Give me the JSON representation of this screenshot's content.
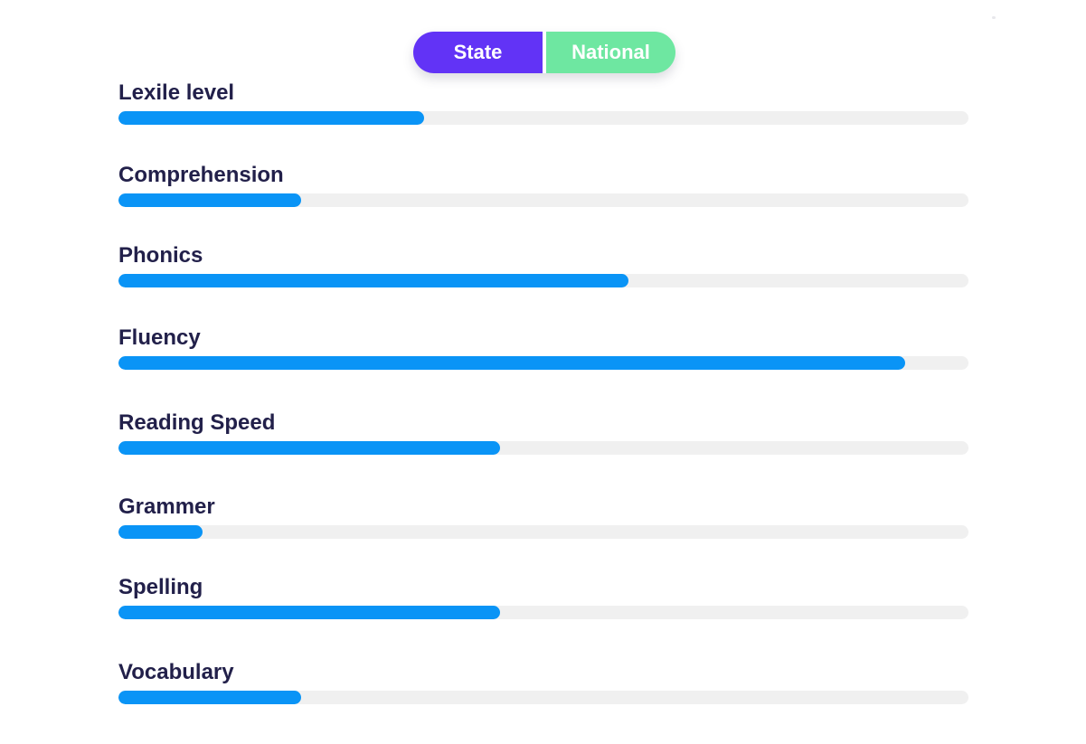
{
  "toggle": {
    "state_label": "State",
    "national_label": "National"
  },
  "colors": {
    "state": "#6233f6",
    "national": "#6ee7a1",
    "bar_fill": "#0a94f6",
    "track": "#f0f0f0",
    "label_text": "#22204a"
  },
  "metrics": [
    {
      "label": "Lexile level",
      "value": 0.36
    },
    {
      "label": "Comprehension",
      "value": 0.215
    },
    {
      "label": "Phonics",
      "value": 0.6
    },
    {
      "label": "Fluency",
      "value": 0.926
    },
    {
      "label": "Reading Speed",
      "value": 0.449
    },
    {
      "label": "Grammer",
      "value": 0.099
    },
    {
      "label": "Spelling",
      "value": 0.449
    },
    {
      "label": "Vocabulary",
      "value": 0.215
    }
  ]
}
